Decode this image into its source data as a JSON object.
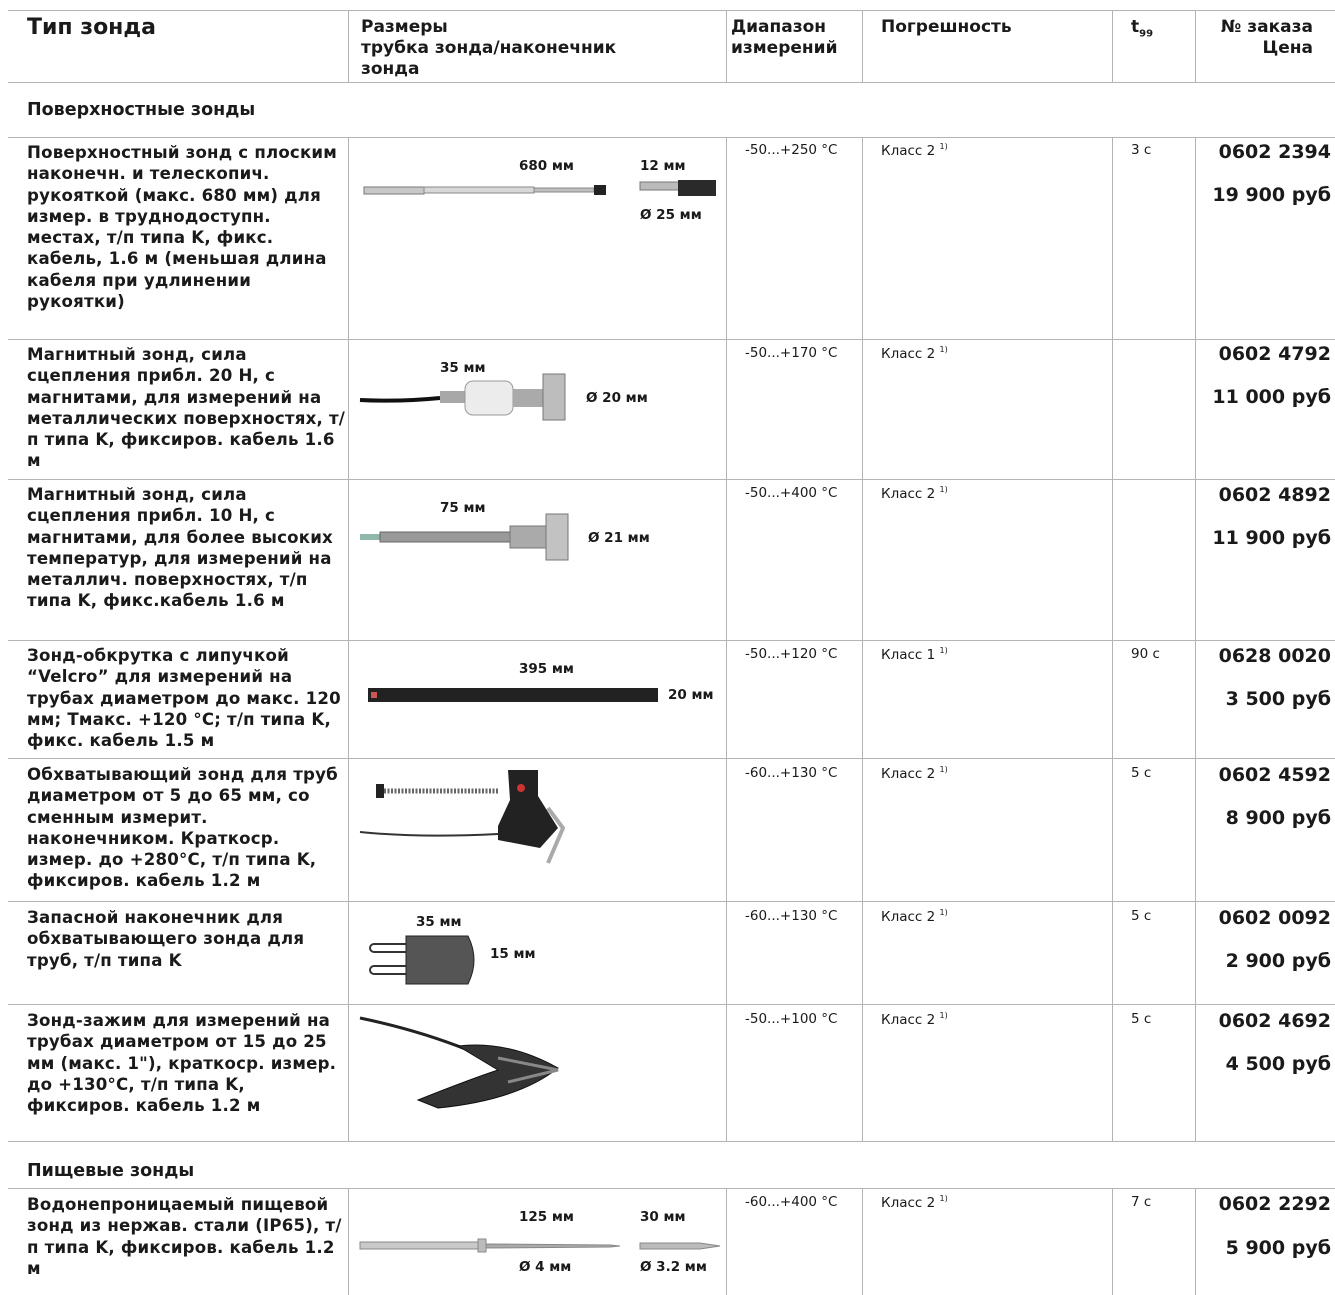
{
  "headers": {
    "type": "Тип зонда",
    "sizes_1": "Размеры",
    "sizes_2": "трубка зонда/наконечник",
    "sizes_3": "зонда",
    "range_1": "Диапазон",
    "range_2": "измерений",
    "accuracy": "Погрешность",
    "t99": "t",
    "t99_sub": "99",
    "order_1": "№ заказа",
    "order_2": "Цена"
  },
  "sections": {
    "surface": "Поверхностные зонды",
    "food": "Пищевые зонды"
  },
  "rows": [
    {
      "description": "Поверхностный зонд с плоским наконечн. и телескопич. рукояткой (макс. 680 мм) для измер. в труднодоступн. местах, т/п типа K, фикс. кабель, 1.6 м (меньшая длина кабеля при удлинении рукоятки)",
      "dims": [
        "680 мм",
        "12 мм",
        "Ø 25 мм"
      ],
      "range": "-50...+250 °C",
      "accuracy": "Класс 2",
      "accuracy_note": "1)",
      "t99": "3 с",
      "order": "0602 2394",
      "price": "19 900 руб"
    },
    {
      "description": "Магнитный зонд, сила сцепления прибл. 20 Н, с магнитами, для измерений на металлических поверхностях, т/п типа K, фиксиров. кабель 1.6 м",
      "dims": [
        "35 мм",
        "Ø 20 мм"
      ],
      "range": "-50...+170 °C",
      "accuracy": "Класс 2",
      "accuracy_note": "1)",
      "t99": "",
      "order": "0602 4792",
      "price": "11 000 руб"
    },
    {
      "description": "Магнитный зонд, сила сцепления прибл. 10 Н, с магнитами, для более высоких температур, для измерений на металлич. поверхностях, т/п типа K, фикс.кабель 1.6 м",
      "dims": [
        "75 мм",
        "Ø 21 мм"
      ],
      "range": "-50...+400 °C",
      "accuracy": "Класс 2",
      "accuracy_note": "1)",
      "t99": "",
      "order": "0602 4892",
      "price": "11 900 руб"
    },
    {
      "description": "Зонд-обкрутка с липучкой “Velcro” для измерений на трубах диаметром до макс. 120 мм; Tмакс. +120 °C; т/п типа K, фикс. кабель 1.5 м",
      "dims": [
        "395 мм",
        "20 мм"
      ],
      "range": "-50...+120 °C",
      "accuracy": "Класс 1",
      "accuracy_note": "1)",
      "t99": "90 с",
      "order": "0628 0020",
      "price": "3 500 руб"
    },
    {
      "description": "Обхватывающий зонд для труб диаметром от 5 до 65 мм, со сменным измерит. наконечником. Краткоср. измер. до +280°C, т/п типа K, фиксиров. кабель 1.2 м",
      "dims": [],
      "range": "-60...+130 °C",
      "accuracy": "Класс 2",
      "accuracy_note": "1)",
      "t99": "5 с",
      "order": "0602 4592",
      "price": "8 900 руб"
    },
    {
      "description": "Запасной наконечник для обхватывающего зонда для труб, т/п типа K",
      "dims": [
        "35 мм",
        "15 мм"
      ],
      "range": "-60...+130 °C",
      "accuracy": "Класс 2",
      "accuracy_note": "1)",
      "t99": "5 с",
      "order": "0602 0092",
      "price": "2 900 руб"
    },
    {
      "description": "Зонд-зажим для измерений на трубах диаметром от 15 до 25 мм (макс. 1\"), краткоср. измер. до +130°C, т/п типа K, фиксиров. кабель 1.2 м",
      "dims": [],
      "range": "-50...+100 °C",
      "accuracy": "Класс 2",
      "accuracy_note": "1)",
      "t99": "5 с",
      "order": "0602 4692",
      "price": "4 500 руб"
    },
    {
      "description": "Водонепроницаемый пищевой зонд из нержав. стали (IP65), т/п типа K, фиксиров. кабель 1.2 м",
      "dims": [
        "125 мм",
        "30 мм",
        "Ø 4 мм",
        "Ø 3.2 мм"
      ],
      "range": "-60...+400 °C",
      "accuracy": "Класс 2",
      "accuracy_note": "1)",
      "t99": "7 с",
      "order": "0602 2292",
      "price": "5 900 руб"
    }
  ]
}
